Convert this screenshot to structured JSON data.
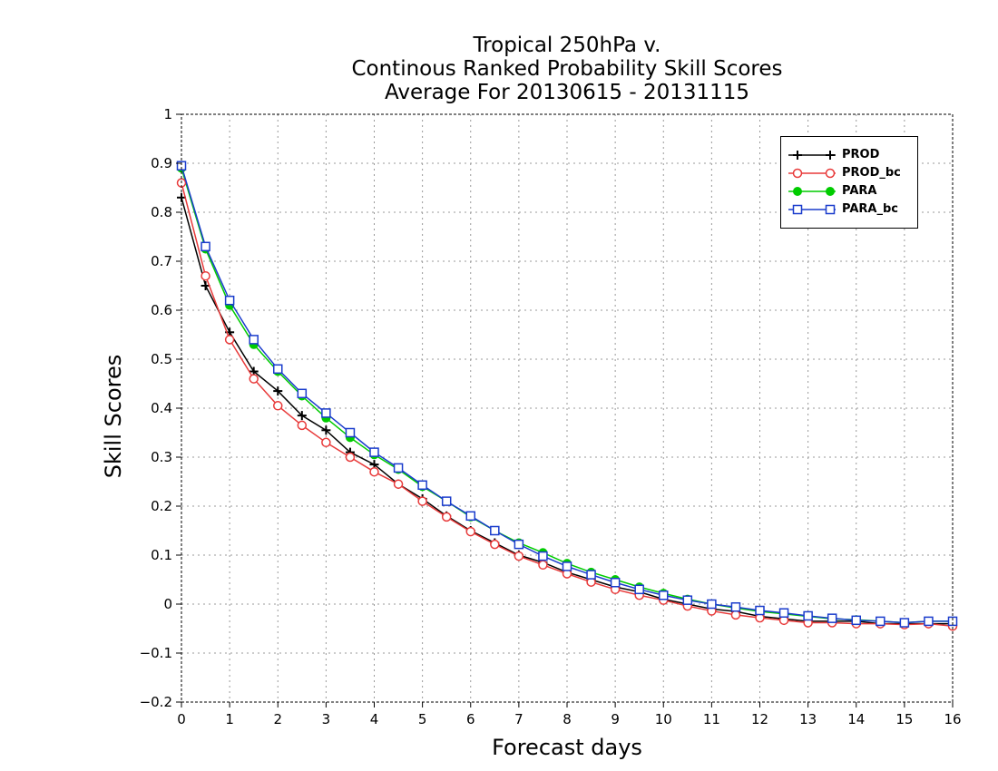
{
  "chart_data": {
    "type": "line",
    "title_lines": [
      "Tropical 250hPa v.",
      "Continous Ranked Probability Skill Scores",
      "Average For 20130615 - 20131115"
    ],
    "xlabel": "Forecast days",
    "ylabel": "Skill Scores",
    "xlim": [
      0,
      16
    ],
    "ylim": [
      -0.2,
      1
    ],
    "x_ticks": [
      "0",
      "1",
      "2",
      "3",
      "4",
      "5",
      "6",
      "7",
      "8",
      "9",
      "10",
      "11",
      "12",
      "13",
      "14",
      "15",
      "16"
    ],
    "y_ticks": [
      "−0.2",
      "−0.1",
      "0",
      "0.1",
      "0.2",
      "0.3",
      "0.4",
      "0.5",
      "0.6",
      "0.7",
      "0.8",
      "0.9",
      "1"
    ],
    "grid": true,
    "legend_position": "top-right",
    "x": [
      0,
      0.5,
      1,
      1.5,
      2,
      2.5,
      3,
      3.5,
      4,
      4.5,
      5,
      5.5,
      6,
      6.5,
      7,
      7.5,
      8,
      8.5,
      9,
      9.5,
      10,
      10.5,
      11,
      11.5,
      12,
      12.5,
      13,
      13.5,
      14,
      14.5,
      15,
      15.5,
      16
    ],
    "series": [
      {
        "name": "PROD",
        "color": "#000000",
        "marker": "plus",
        "values": [
          0.83,
          0.65,
          0.555,
          0.475,
          0.435,
          0.385,
          0.355,
          0.31,
          0.285,
          0.245,
          0.215,
          0.18,
          0.15,
          0.125,
          0.1,
          0.085,
          0.065,
          0.05,
          0.035,
          0.025,
          0.01,
          0.0,
          -0.01,
          -0.015,
          -0.025,
          -0.03,
          -0.035,
          -0.035,
          -0.035,
          -0.04,
          -0.04,
          -0.04,
          -0.04
        ]
      },
      {
        "name": "PROD_bc",
        "color": "#e83a3a",
        "marker": "circle",
        "values": [
          0.86,
          0.67,
          0.54,
          0.46,
          0.405,
          0.365,
          0.33,
          0.3,
          0.27,
          0.245,
          0.21,
          0.178,
          0.148,
          0.122,
          0.098,
          0.08,
          0.062,
          0.045,
          0.03,
          0.018,
          0.008,
          -0.004,
          -0.014,
          -0.022,
          -0.028,
          -0.033,
          -0.038,
          -0.038,
          -0.04,
          -0.04,
          -0.042,
          -0.04,
          -0.045
        ]
      },
      {
        "name": "PARA",
        "color": "#00cc00",
        "marker": "filled-circle",
        "values": [
          0.89,
          0.725,
          0.61,
          0.53,
          0.475,
          0.425,
          0.38,
          0.34,
          0.305,
          0.275,
          0.24,
          0.21,
          0.178,
          0.15,
          0.125,
          0.105,
          0.083,
          0.065,
          0.05,
          0.035,
          0.022,
          0.01,
          0.0,
          -0.008,
          -0.015,
          -0.02,
          -0.025,
          -0.03,
          -0.032,
          -0.035,
          -0.038,
          -0.035,
          -0.035
        ]
      },
      {
        "name": "PARA_bc",
        "color": "#1a3ccc",
        "marker": "square",
        "values": [
          0.895,
          0.73,
          0.62,
          0.54,
          0.48,
          0.43,
          0.39,
          0.35,
          0.31,
          0.278,
          0.243,
          0.21,
          0.18,
          0.15,
          0.122,
          0.098,
          0.077,
          0.06,
          0.044,
          0.03,
          0.018,
          0.008,
          0.0,
          -0.006,
          -0.013,
          -0.018,
          -0.024,
          -0.029,
          -0.033,
          -0.035,
          -0.038,
          -0.035,
          -0.035
        ]
      }
    ]
  }
}
